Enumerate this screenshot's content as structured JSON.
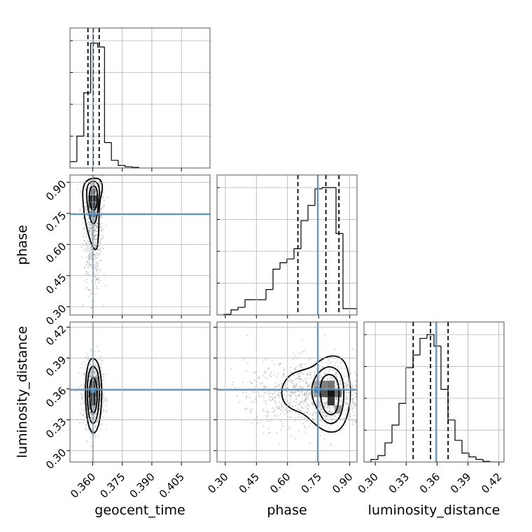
{
  "chart_data": {
    "type": "corner",
    "parameters": [
      "geocent_time",
      "phase",
      "luminosity_distance"
    ],
    "colors": {
      "truth": "#4682b4",
      "line": "#000000",
      "grid": "#b0b0b0",
      "scatter": "#8c8c8c"
    },
    "grid": true,
    "truths": {
      "geocent_time": 0.3601,
      "phase": 0.745,
      "luminosity_distance": 0.359
    },
    "axes": {
      "geocent_time": {
        "range": [
          0.3485,
          0.4195
        ],
        "ticks": [
          0.36,
          0.375,
          0.39,
          0.405
        ],
        "tick_labels": [
          "0.360",
          "0.375",
          "0.390",
          "0.405"
        ]
      },
      "phase": {
        "range": [
          0.26,
          0.935
        ],
        "ticks": [
          0.3,
          0.45,
          0.6,
          0.75,
          0.9
        ],
        "tick_labels": [
          "0.30",
          "0.45",
          "0.60",
          "0.75",
          "0.90"
        ]
      },
      "luminosity_distance": {
        "range": [
          0.289,
          0.425
        ],
        "ticks": [
          0.3,
          0.33,
          0.36,
          0.39,
          0.42
        ],
        "tick_labels": [
          "0.30",
          "0.33",
          "0.36",
          "0.39",
          "0.42"
        ]
      }
    },
    "histograms": [
      {
        "parameter": "geocent_time",
        "bin_edges": [
          0.3485,
          0.352,
          0.3555,
          0.359,
          0.3625,
          0.366,
          0.3695,
          0.373,
          0.3765,
          0.38,
          0.3835
        ],
        "counts": [
          0.05,
          0.25,
          0.59,
          0.98,
          0.95,
          0.2,
          0.06,
          0.02,
          0.01,
          0.005
        ],
        "quantiles": [
          0.3576,
          0.3603,
          0.3633
        ]
      },
      {
        "parameter": "phase",
        "bin_edges": [
          0.26,
          0.2938,
          0.3275,
          0.3613,
          0.395,
          0.4288,
          0.4625,
          0.4963,
          0.53,
          0.5638,
          0.5975,
          0.6313,
          0.665,
          0.6988,
          0.7325,
          0.7663,
          0.8,
          0.8338,
          0.8675,
          0.9013,
          0.935
        ],
        "counts": [
          0.0,
          0.005,
          0.04,
          0.06,
          0.12,
          0.12,
          0.12,
          0.2,
          0.36,
          0.41,
          0.44,
          0.52,
          0.74,
          0.86,
          0.99,
          1.0,
          1.0,
          0.64,
          0.05,
          0.05
        ],
        "quantiles": [
          0.65,
          0.785,
          0.848
        ]
      },
      {
        "parameter": "luminosity_distance",
        "bin_edges": [
          0.289,
          0.2958,
          0.3026,
          0.3094,
          0.3162,
          0.323,
          0.3298,
          0.3366,
          0.3434,
          0.3502,
          0.357,
          0.3638,
          0.3706,
          0.3774,
          0.3842,
          0.391,
          0.3978,
          0.4046,
          0.4114,
          0.4182,
          0.425
        ],
        "counts": [
          0.0,
          0.02,
          0.05,
          0.15,
          0.29,
          0.46,
          0.74,
          0.84,
          0.97,
          1.0,
          0.91,
          0.57,
          0.33,
          0.17,
          0.07,
          0.04,
          0.02,
          0.005,
          0.0,
          0.0
        ],
        "quantiles": [
          0.3368,
          0.3536,
          0.3707
        ]
      }
    ],
    "density_panels": [
      {
        "x": "geocent_time",
        "y": "phase",
        "peak": {
          "x": 0.3602,
          "y": 0.812
        },
        "contours": [
          [
            [
              0.3562,
              0.905
            ],
            [
              0.3598,
              0.921
            ],
            [
              0.3642,
              0.916
            ],
            [
              0.3652,
              0.872
            ],
            [
              0.3638,
              0.818
            ],
            [
              0.3632,
              0.76
            ],
            [
              0.3632,
              0.68
            ],
            [
              0.3625,
              0.585
            ],
            [
              0.3612,
              0.57
            ],
            [
              0.3592,
              0.605
            ],
            [
              0.3575,
              0.66
            ],
            [
              0.356,
              0.725
            ],
            [
              0.3552,
              0.79
            ],
            [
              0.3548,
              0.86
            ]
          ],
          [
            [
              0.3575,
              0.892
            ],
            [
              0.3603,
              0.906
            ],
            [
              0.3628,
              0.896
            ],
            [
              0.3636,
              0.855
            ],
            [
              0.363,
              0.805
            ],
            [
              0.3624,
              0.745
            ],
            [
              0.3612,
              0.7
            ],
            [
              0.3595,
              0.7
            ],
            [
              0.3582,
              0.745
            ],
            [
              0.3572,
              0.8
            ],
            [
              0.3568,
              0.85
            ]
          ],
          [
            [
              0.3586,
              0.872
            ],
            [
              0.3604,
              0.885
            ],
            [
              0.3621,
              0.872
            ],
            [
              0.3625,
              0.83
            ],
            [
              0.362,
              0.782
            ],
            [
              0.3606,
              0.762
            ],
            [
              0.3591,
              0.775
            ],
            [
              0.3583,
              0.82
            ]
          ]
        ],
        "density": [
          {
            "x": 0.3602,
            "y": 0.822,
            "w": 0.0022,
            "h": 0.03,
            "v": 1.0
          },
          {
            "x": 0.3602,
            "y": 0.79,
            "w": 0.0022,
            "h": 0.03,
            "v": 0.9
          },
          {
            "x": 0.3586,
            "y": 0.822,
            "w": 0.0016,
            "h": 0.03,
            "v": 0.7
          },
          {
            "x": 0.3618,
            "y": 0.822,
            "w": 0.0016,
            "h": 0.03,
            "v": 0.7
          },
          {
            "x": 0.3586,
            "y": 0.79,
            "w": 0.0016,
            "h": 0.03,
            "v": 0.55
          },
          {
            "x": 0.3618,
            "y": 0.79,
            "w": 0.0016,
            "h": 0.03,
            "v": 0.5
          },
          {
            "x": 0.3602,
            "y": 0.855,
            "w": 0.0022,
            "h": 0.03,
            "v": 0.55
          },
          {
            "x": 0.3602,
            "y": 0.758,
            "w": 0.0022,
            "h": 0.03,
            "v": 0.35
          }
        ],
        "scatter": {
          "center": [
            0.3603,
            0.74
          ],
          "spread": [
            0.0023,
            0.11
          ],
          "count": 900,
          "y_skew": -0.9
        }
      },
      {
        "x": "geocent_time",
        "y": "luminosity_distance",
        "peak": {
          "x": 0.3603,
          "y": 0.354
        },
        "contours": [
          [
            [
              0.3603,
              0.391
            ],
            [
              0.3633,
              0.384
            ],
            [
              0.3648,
              0.362
            ],
            [
              0.3642,
              0.335
            ],
            [
              0.3622,
              0.319
            ],
            [
              0.3598,
              0.316
            ],
            [
              0.3575,
              0.326
            ],
            [
              0.3562,
              0.348
            ],
            [
              0.3565,
              0.372
            ],
            [
              0.358,
              0.387
            ]
          ],
          [
            [
              0.3603,
              0.383
            ],
            [
              0.3627,
              0.377
            ],
            [
              0.3636,
              0.36
            ],
            [
              0.363,
              0.34
            ],
            [
              0.3614,
              0.327
            ],
            [
              0.3594,
              0.326
            ],
            [
              0.3578,
              0.336
            ],
            [
              0.3571,
              0.355
            ],
            [
              0.3576,
              0.372
            ],
            [
              0.3588,
              0.38
            ]
          ],
          [
            [
              0.3603,
              0.372
            ],
            [
              0.3618,
              0.367
            ],
            [
              0.3624,
              0.356
            ],
            [
              0.362,
              0.343
            ],
            [
              0.3608,
              0.336
            ],
            [
              0.3595,
              0.337
            ],
            [
              0.3586,
              0.347
            ],
            [
              0.3584,
              0.36
            ],
            [
              0.3591,
              0.369
            ]
          ]
        ],
        "density": [
          {
            "x": 0.3603,
            "y": 0.356,
            "w": 0.0022,
            "h": 0.008,
            "v": 1.0
          },
          {
            "x": 0.3603,
            "y": 0.348,
            "w": 0.0022,
            "h": 0.008,
            "v": 0.9
          },
          {
            "x": 0.3603,
            "y": 0.364,
            "w": 0.0022,
            "h": 0.008,
            "v": 0.75
          },
          {
            "x": 0.3587,
            "y": 0.356,
            "w": 0.0016,
            "h": 0.008,
            "v": 0.6
          },
          {
            "x": 0.3619,
            "y": 0.356,
            "w": 0.0016,
            "h": 0.008,
            "v": 0.6
          },
          {
            "x": 0.3587,
            "y": 0.344,
            "w": 0.0016,
            "h": 0.008,
            "v": 0.45
          },
          {
            "x": 0.3619,
            "y": 0.368,
            "w": 0.0016,
            "h": 0.008,
            "v": 0.4
          }
        ],
        "scatter": {
          "center": [
            0.3603,
            0.355
          ],
          "spread": [
            0.0024,
            0.016
          ],
          "count": 900,
          "y_skew": 0
        }
      },
      {
        "x": "phase",
        "y": "luminosity_distance",
        "peak": {
          "x": 0.815,
          "y": 0.356
        },
        "contours": [
          [
            [
              0.57,
              0.362
            ],
            [
              0.61,
              0.374
            ],
            [
              0.665,
              0.378
            ],
            [
              0.72,
              0.381
            ],
            [
              0.77,
              0.39
            ],
            [
              0.83,
              0.393
            ],
            [
              0.88,
              0.387
            ],
            [
              0.905,
              0.365
            ],
            [
              0.9,
              0.339
            ],
            [
              0.86,
              0.32
            ],
            [
              0.8,
              0.317
            ],
            [
              0.74,
              0.324
            ],
            [
              0.68,
              0.336
            ],
            [
              0.62,
              0.34
            ],
            [
              0.575,
              0.348
            ]
          ],
          [
            [
              0.715,
              0.363
            ],
            [
              0.745,
              0.376
            ],
            [
              0.8,
              0.383
            ],
            [
              0.855,
              0.377
            ],
            [
              0.875,
              0.36
            ],
            [
              0.865,
              0.337
            ],
            [
              0.83,
              0.326
            ],
            [
              0.78,
              0.327
            ],
            [
              0.745,
              0.34
            ],
            [
              0.72,
              0.35
            ]
          ],
          [
            [
              0.755,
              0.36
            ],
            [
              0.77,
              0.372
            ],
            [
              0.81,
              0.375
            ],
            [
              0.845,
              0.368
            ],
            [
              0.85,
              0.352
            ],
            [
              0.838,
              0.338
            ],
            [
              0.81,
              0.334
            ],
            [
              0.778,
              0.338
            ],
            [
              0.762,
              0.348
            ]
          ]
        ],
        "density": [
          {
            "x": 0.81,
            "y": 0.356,
            "w": 0.034,
            "h": 0.008,
            "v": 1.0
          },
          {
            "x": 0.81,
            "y": 0.348,
            "w": 0.034,
            "h": 0.008,
            "v": 0.85
          },
          {
            "x": 0.776,
            "y": 0.356,
            "w": 0.034,
            "h": 0.008,
            "v": 0.7
          },
          {
            "x": 0.844,
            "y": 0.356,
            "w": 0.034,
            "h": 0.008,
            "v": 0.6
          },
          {
            "x": 0.776,
            "y": 0.364,
            "w": 0.034,
            "h": 0.008,
            "v": 0.5
          },
          {
            "x": 0.81,
            "y": 0.364,
            "w": 0.034,
            "h": 0.008,
            "v": 0.55
          },
          {
            "x": 0.742,
            "y": 0.356,
            "w": 0.034,
            "h": 0.008,
            "v": 0.35
          },
          {
            "x": 0.742,
            "y": 0.364,
            "w": 0.034,
            "h": 0.008,
            "v": 0.3
          },
          {
            "x": 0.844,
            "y": 0.34,
            "w": 0.034,
            "h": 0.008,
            "v": 0.35
          }
        ],
        "scatter": {
          "center": [
            0.74,
            0.355
          ],
          "spread": [
            0.11,
            0.016
          ],
          "count": 1100,
          "x_skew": -0.9
        }
      }
    ]
  }
}
